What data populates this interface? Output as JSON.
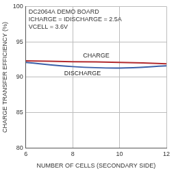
{
  "chart_data": {
    "type": "line",
    "x_label": "NUMBER OF CELLS (SECONDARY SIDE)",
    "y_label": "CHARGE TRANSFER EFFICIENCY (%)",
    "annotations": [
      "DC2064A DEMO BOARD",
      "ICHARGE = IDISCHARGE = 2.5A",
      "VCELL = 3.6V"
    ],
    "x": [
      6,
      8,
      10,
      12
    ],
    "series": [
      {
        "name": "CHARGE",
        "color": "#b22a2e",
        "values": [
          92.3,
          92.2,
          92.1,
          91.9
        ]
      },
      {
        "name": "DISCHARGE",
        "color": "#3a5fa8",
        "values": [
          92.1,
          91.5,
          91.3,
          91.6
        ]
      }
    ],
    "xlim": [
      6,
      12
    ],
    "xticks": [
      6,
      8,
      10,
      12
    ],
    "ylim": [
      80,
      100
    ],
    "yticks": [
      80,
      85,
      90,
      95,
      100
    ],
    "grid": true
  }
}
